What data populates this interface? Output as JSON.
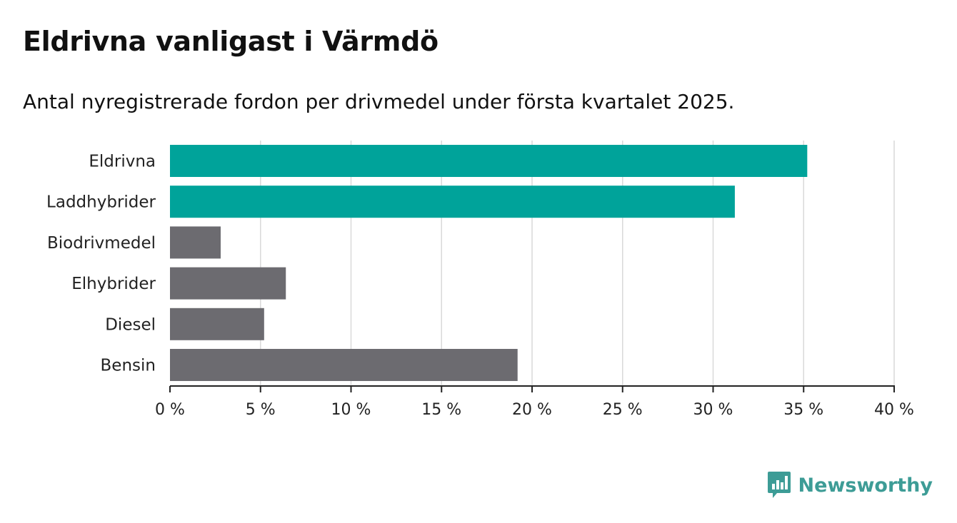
{
  "header": {
    "title": "Eldrivna vanligast i Värmdö",
    "subtitle": "Antal nyregistrerade fordon per drivmedel under första kvartalet 2025."
  },
  "logo": {
    "text": "Newsworthy",
    "icon": "newsworthy-logo-icon",
    "color": "#3d9c96"
  },
  "colors": {
    "highlight": "#00a39a",
    "default": "#6c6b70",
    "grid": "#d9d9d9",
    "axis": "#222222"
  },
  "chart_data": {
    "type": "bar",
    "orientation": "horizontal",
    "categories": [
      "Eldrivna",
      "Laddhybrider",
      "Biodrivmedel",
      "Elhybrider",
      "Diesel",
      "Bensin"
    ],
    "values": [
      35.2,
      31.2,
      2.8,
      6.4,
      5.2,
      19.2
    ],
    "highlighted": [
      true,
      true,
      false,
      false,
      false,
      false
    ],
    "xlim": [
      0,
      40
    ],
    "xticks": [
      0,
      5,
      10,
      15,
      20,
      25,
      30,
      35,
      40
    ],
    "xtick_labels": [
      "0 %",
      "5 %",
      "10 %",
      "15 %",
      "20 %",
      "25 %",
      "30 %",
      "35 %",
      "40 %"
    ],
    "unit": "%",
    "grid": true
  }
}
